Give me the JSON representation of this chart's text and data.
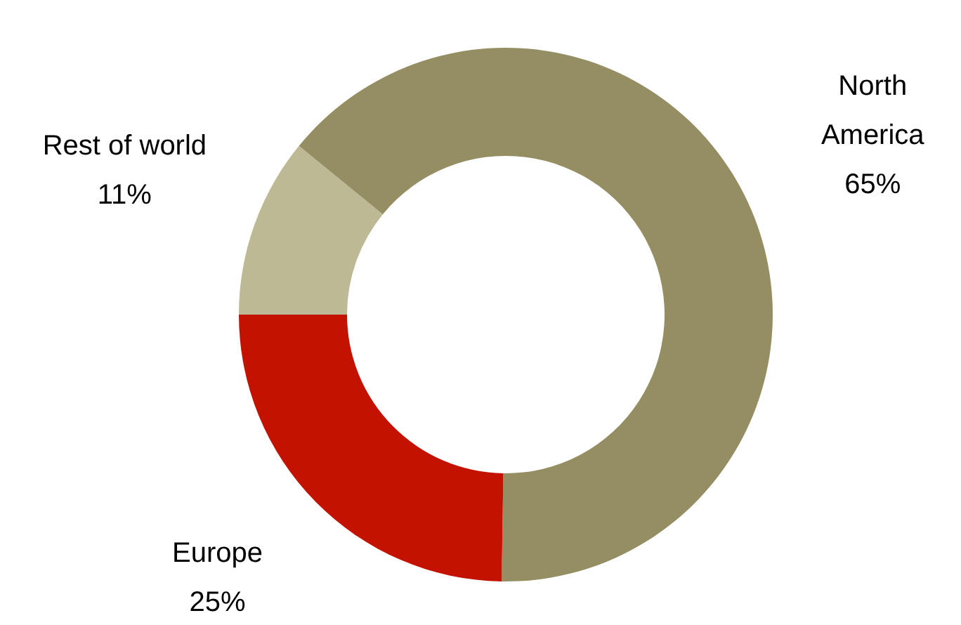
{
  "chart_data": {
    "type": "donut",
    "categories": [
      "Rest of world",
      "North America",
      "Europe"
    ],
    "values": [
      11,
      65,
      25
    ],
    "value_labels": [
      "11%",
      "65%",
      "25%"
    ],
    "colors": [
      "#bdb995",
      "#948e62",
      "#c41200"
    ]
  }
}
